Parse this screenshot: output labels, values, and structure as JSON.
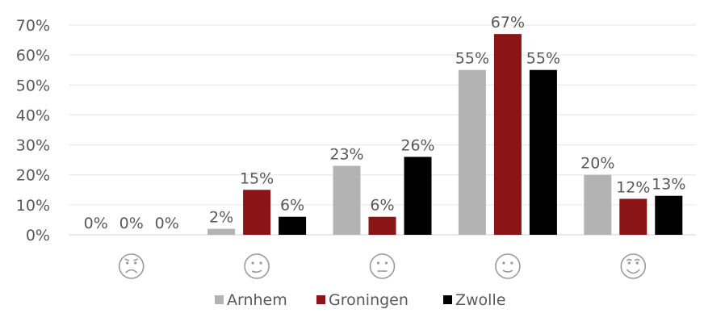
{
  "chart_data": {
    "type": "bar",
    "categories": [
      "very-unhappy-icon",
      "slightly-unhappy-icon",
      "neutral-icon",
      "slightly-happy-icon",
      "very-happy-icon"
    ],
    "series": [
      {
        "name": "Arnhem",
        "values": [
          0,
          2,
          23,
          55,
          20
        ],
        "labels": [
          "0%",
          "2%",
          "23%",
          "55%",
          "20%"
        ],
        "color": "#b3b3b3"
      },
      {
        "name": "Groningen",
        "values": [
          0,
          15,
          6,
          67,
          12
        ],
        "labels": [
          "0%",
          "15%",
          "6%",
          "67%",
          "12%"
        ],
        "color": "#8b1416"
      },
      {
        "name": "Zwolle",
        "values": [
          0,
          6,
          26,
          55,
          13
        ],
        "labels": [
          "0%",
          "6%",
          "26%",
          "55%",
          "13%"
        ],
        "color": "#000000"
      }
    ],
    "yticks": [
      "0%",
      "10%",
      "20%",
      "30%",
      "40%",
      "50%",
      "60%",
      "70%"
    ],
    "ylim": [
      0,
      70
    ],
    "grid": true,
    "legend_position": "bottom"
  }
}
